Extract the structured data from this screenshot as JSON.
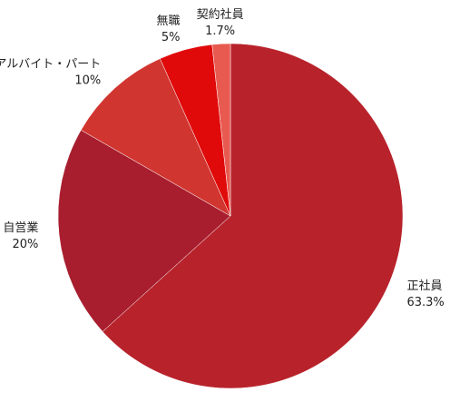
{
  "chart_data": {
    "type": "pie",
    "categories": [
      "正社員",
      "自営業",
      "アルバイト・パート",
      "無職",
      "契約社員"
    ],
    "values": [
      63.3,
      20,
      10,
      5,
      1.7
    ],
    "value_labels": [
      "63.3%",
      "20%",
      "10%",
      "5%",
      "1.7%"
    ],
    "colors": [
      "#b8232b",
      "#a81e2e",
      "#d13530",
      "#e00a0a",
      "#e85a50"
    ]
  }
}
